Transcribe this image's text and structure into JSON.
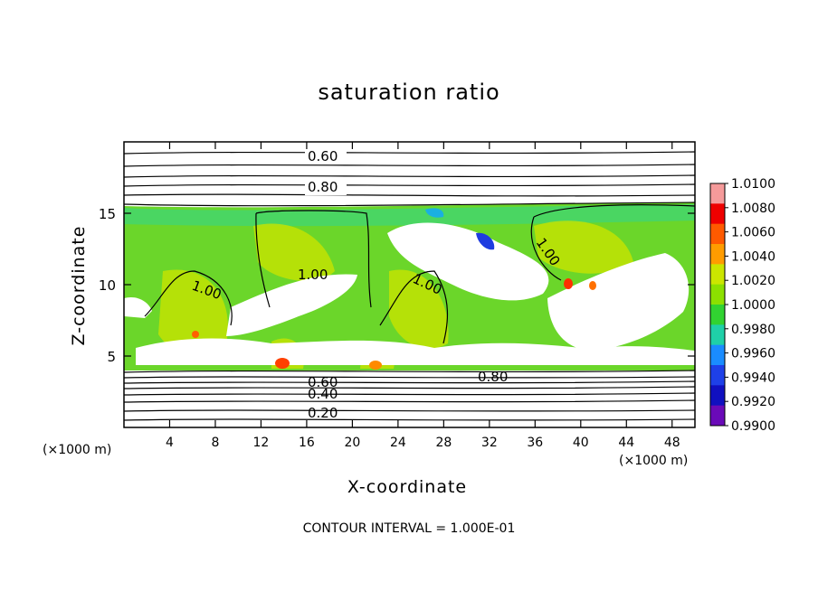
{
  "chart_data": {
    "type": "heatmap",
    "title": "saturation ratio",
    "xlabel": "X-coordinate",
    "ylabel": "Z-coordinate",
    "x_unit_label": "(×1000 m)",
    "z_unit_label": "(×1000 m)",
    "xlim": [
      0,
      50
    ],
    "ylim": [
      0,
      20
    ],
    "x_ticks": [
      "4",
      "8",
      "12",
      "16",
      "20",
      "24",
      "28",
      "32",
      "36",
      "40",
      "44",
      "48"
    ],
    "y_ticks": [
      "5",
      "10",
      "15"
    ],
    "colorbar": {
      "range": [
        0.99,
        1.011
      ],
      "labels": [
        "1.0100",
        "1.0080",
        "1.0060",
        "1.0040",
        "1.0020",
        "1.0000",
        "0.9980",
        "0.9960",
        "0.9940",
        "0.9920",
        "0.9900"
      ],
      "colors": [
        "#f59a9a",
        "#ee0000",
        "#ff5a00",
        "#ff9c00",
        "#cbe600",
        "#8ce000",
        "#31d331",
        "#1fd0a8",
        "#1a8cff",
        "#1e40e8",
        "#1010c0",
        "#6a0ab8"
      ]
    },
    "contour_labels": [
      "0.60",
      "0.80",
      "1.00",
      "1.00",
      "1.00",
      "1.00",
      "0.60",
      "0.40",
      "0.80",
      "0.20"
    ],
    "footer": "CONTOUR INTERVAL = 1.000E-01"
  }
}
